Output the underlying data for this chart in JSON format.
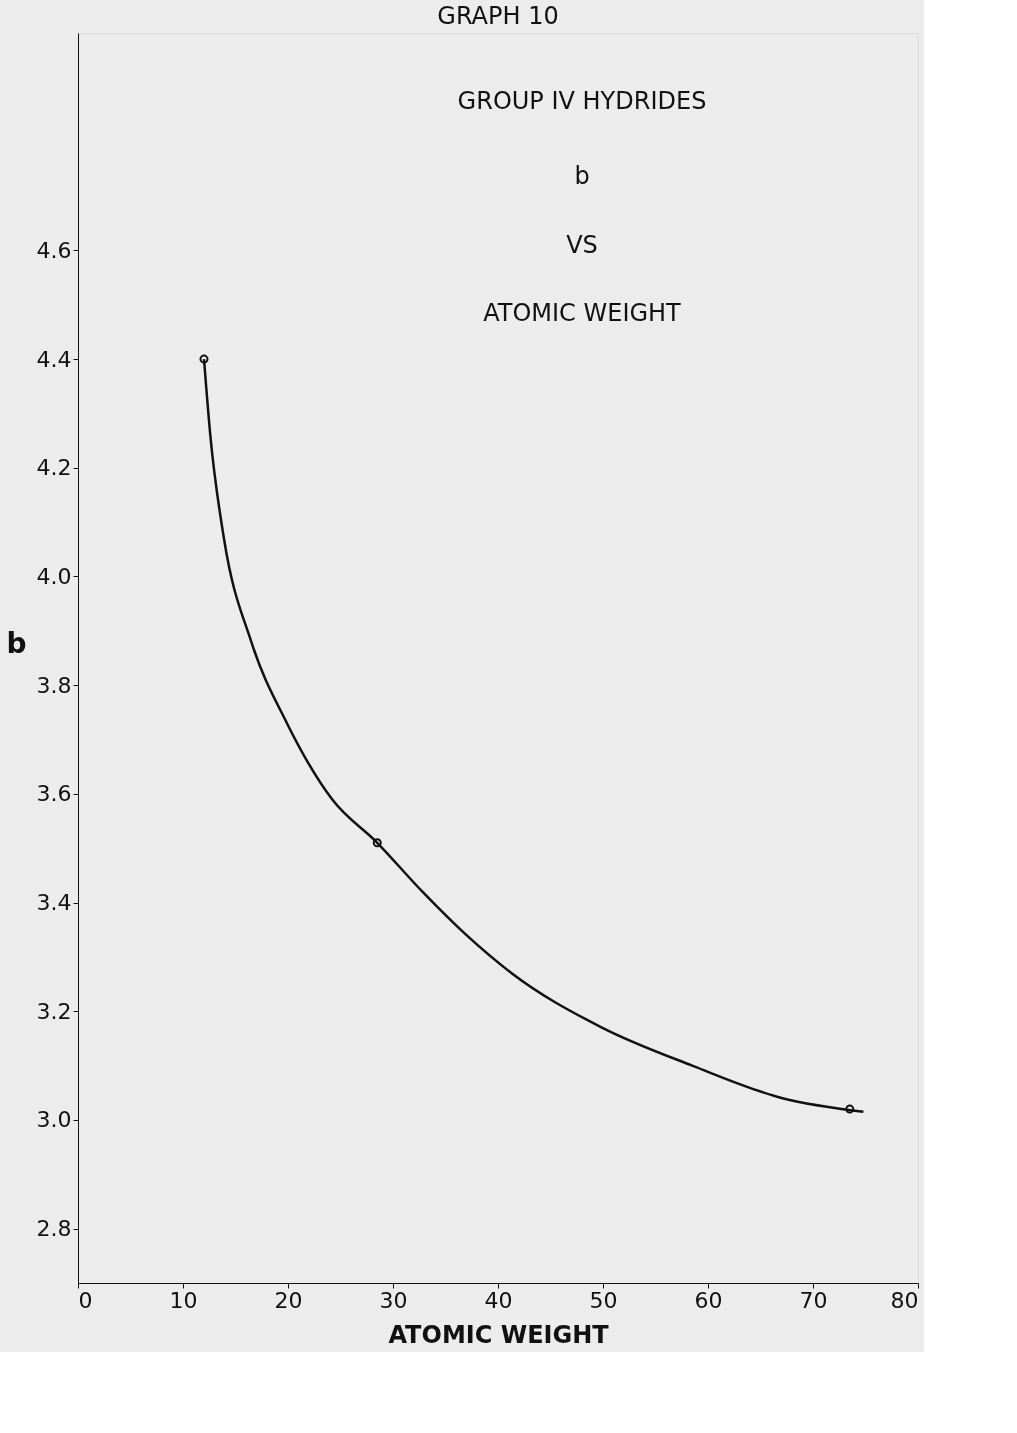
{
  "chart_data": {
    "type": "line",
    "title": "GRAPH 10",
    "xlabel": "ATOMIC WEIGHT",
    "ylabel": "b",
    "annotations": [
      "GROUP IV HYDRIDES",
      "b",
      "VS",
      "ATOMIC WEIGHT"
    ],
    "xlim": [
      0,
      80
    ],
    "ylim": [
      2.7,
      5.0
    ],
    "xticks": [
      0,
      10,
      20,
      30,
      40,
      50,
      60,
      70,
      80
    ],
    "yticks": [
      2.8,
      {
        "value": 3,
        "label": "3.0"
      },
      3.2,
      3.4,
      3.6,
      3.8,
      {
        "value": 4,
        "label": "4.0"
      },
      4.2,
      4.4,
      4.6
    ],
    "grid": false,
    "series": [
      {
        "color": "#111111",
        "marker": "none",
        "x": [
          12.0,
          12.6,
          13.9,
          16.5,
          19.9,
          24.2,
          28.5,
          32.8,
          37.0,
          41.3,
          49.9,
          58.5,
          67.1,
          74.8
        ],
        "values": [
          4.4,
          4.26,
          4.07,
          3.88,
          3.73,
          3.59,
          3.51,
          3.42,
          3.34,
          3.27,
          3.17,
          3.1,
          3.04,
          3.015
        ]
      },
      {
        "type": "scatter",
        "color": "#111111",
        "marker": "circle",
        "x": [
          12.0,
          28.5,
          73.5
        ],
        "values": [
          4.4,
          3.51,
          3.02
        ]
      }
    ]
  }
}
